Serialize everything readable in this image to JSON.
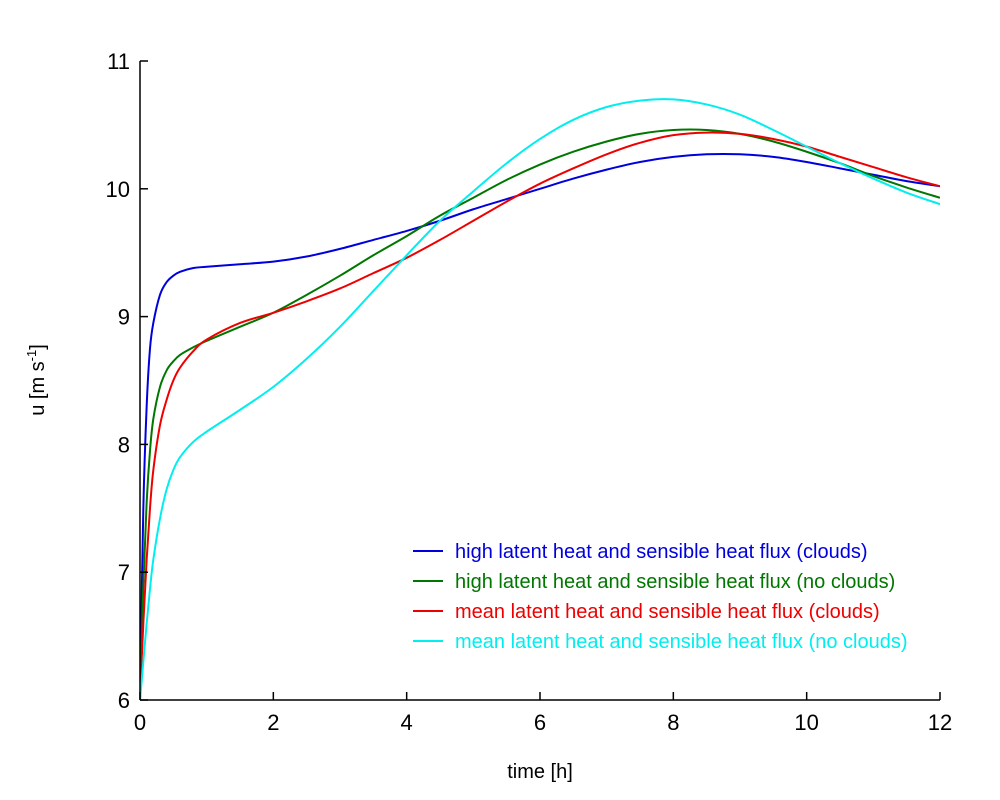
{
  "chart_data": {
    "type": "line",
    "title": "",
    "xlabel": "time [h]",
    "ylabel": "u [m s-1]",
    "ylabel_base": "u [m s",
    "ylabel_exp": "-1",
    "ylabel_close": "]",
    "xlim": [
      0,
      12
    ],
    "ylim": [
      6,
      11
    ],
    "xticks": [
      "0",
      "2",
      "4",
      "6",
      "8",
      "10",
      "12"
    ],
    "yticks": [
      "6",
      "7",
      "8",
      "9",
      "10",
      "11"
    ],
    "grid": false,
    "legend_position": "bottom-right",
    "series": [
      {
        "name": "high latent heat and sensible heat flux (clouds)",
        "color": "#0000dd",
        "x": [
          0,
          0.05,
          0.1,
          0.15,
          0.2,
          0.3,
          0.4,
          0.5,
          0.6,
          0.8,
          1.0,
          1.5,
          2.0,
          2.5,
          3.0,
          3.5,
          4.0,
          4.5,
          5.0,
          5.5,
          6.0,
          6.5,
          7.0,
          7.5,
          8.0,
          8.5,
          9.0,
          9.5,
          10.0,
          10.5,
          11.0,
          11.5,
          12.0
        ],
        "y": [
          6.0,
          7.5,
          8.3,
          8.75,
          8.95,
          9.17,
          9.27,
          9.32,
          9.35,
          9.38,
          9.39,
          9.41,
          9.43,
          9.47,
          9.53,
          9.6,
          9.67,
          9.75,
          9.84,
          9.92,
          10.0,
          10.08,
          10.15,
          10.21,
          10.25,
          10.27,
          10.27,
          10.25,
          10.21,
          10.16,
          10.11,
          10.06,
          10.02
        ]
      },
      {
        "name": "high latent heat and sensible heat flux (no clouds)",
        "color": "#007700",
        "x": [
          0,
          0.05,
          0.1,
          0.15,
          0.2,
          0.3,
          0.4,
          0.5,
          0.6,
          0.8,
          1.0,
          1.5,
          2.0,
          2.5,
          3.0,
          3.5,
          4.0,
          4.5,
          5.0,
          5.5,
          6.0,
          6.5,
          7.0,
          7.5,
          8.0,
          8.5,
          9.0,
          9.5,
          10.0,
          10.5,
          11.0,
          11.5,
          12.0
        ],
        "y": [
          6.0,
          6.9,
          7.55,
          7.95,
          8.2,
          8.45,
          8.58,
          8.65,
          8.7,
          8.76,
          8.81,
          8.92,
          9.03,
          9.17,
          9.32,
          9.48,
          9.63,
          9.79,
          9.93,
          10.07,
          10.19,
          10.29,
          10.37,
          10.43,
          10.46,
          10.46,
          10.43,
          10.37,
          10.29,
          10.2,
          10.1,
          10.01,
          9.93
        ]
      },
      {
        "name": "mean latent heat and sensible heat flux (clouds)",
        "color": "#ee0000",
        "x": [
          0,
          0.05,
          0.1,
          0.15,
          0.2,
          0.3,
          0.4,
          0.5,
          0.6,
          0.8,
          1.0,
          1.5,
          2.0,
          2.5,
          3.0,
          3.5,
          4.0,
          4.5,
          5.0,
          5.5,
          6.0,
          6.5,
          7.0,
          7.5,
          8.0,
          8.5,
          9.0,
          9.5,
          10.0,
          10.5,
          11.0,
          11.5,
          12.0
        ],
        "y": [
          6.0,
          6.6,
          7.1,
          7.5,
          7.8,
          8.15,
          8.35,
          8.5,
          8.6,
          8.73,
          8.82,
          8.95,
          9.03,
          9.12,
          9.22,
          9.34,
          9.46,
          9.6,
          9.75,
          9.9,
          10.04,
          10.16,
          10.27,
          10.36,
          10.42,
          10.44,
          10.43,
          10.39,
          10.33,
          10.25,
          10.17,
          10.09,
          10.02
        ]
      },
      {
        "name": "mean latent heat and sensible heat flux (no clouds)",
        "color": "#00eeee",
        "x": [
          0,
          0.05,
          0.1,
          0.15,
          0.2,
          0.3,
          0.4,
          0.5,
          0.6,
          0.8,
          1.0,
          1.5,
          2.0,
          2.5,
          3.0,
          3.5,
          4.0,
          4.5,
          5.0,
          5.5,
          6.0,
          6.5,
          7.0,
          7.5,
          8.0,
          8.5,
          9.0,
          9.5,
          10.0,
          10.5,
          11.0,
          11.5,
          12.0
        ],
        "y": [
          6.0,
          6.3,
          6.6,
          6.87,
          7.1,
          7.42,
          7.65,
          7.8,
          7.9,
          8.02,
          8.1,
          8.27,
          8.45,
          8.67,
          8.92,
          9.2,
          9.48,
          9.75,
          9.98,
          10.2,
          10.39,
          10.54,
          10.64,
          10.69,
          10.7,
          10.66,
          10.58,
          10.46,
          10.33,
          10.2,
          10.08,
          9.97,
          9.88
        ]
      }
    ]
  }
}
